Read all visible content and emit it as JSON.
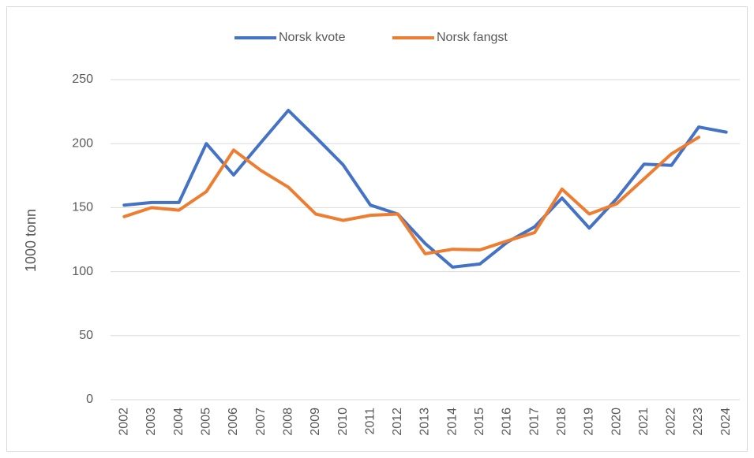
{
  "chart_data": {
    "type": "line",
    "y_label": "1000 tonn",
    "categories": [
      "2002",
      "2003",
      "2004",
      "2005",
      "2006",
      "2007",
      "2008",
      "2009",
      "2010",
      "2011",
      "2012",
      "2013",
      "2014",
      "2015",
      "2016",
      "2017",
      "2018",
      "2019",
      "2020",
      "2021",
      "2022",
      "2023",
      "2024"
    ],
    "series": [
      {
        "name": "Norsk kvote",
        "color": "#4472c4",
        "values": [
          152,
          154,
          154,
          200,
          175.5,
          201,
          226,
          205,
          183.5,
          152,
          145,
          122,
          103.5,
          106,
          123,
          135,
          157.5,
          134,
          157,
          184,
          183,
          213,
          209
        ]
      },
      {
        "name": "Norsk fangst",
        "color": "#ed7d31",
        "values": [
          143,
          150,
          148,
          162.5,
          195,
          179,
          166,
          145,
          140,
          144,
          145,
          114,
          117.5,
          117,
          124,
          130.5,
          164.5,
          145,
          153,
          172.5,
          192,
          205,
          null
        ]
      }
    ],
    "ylim": [
      0,
      250
    ],
    "yticks": [
      0,
      50,
      100,
      150,
      200,
      250
    ],
    "grid": true,
    "legend": "top"
  }
}
